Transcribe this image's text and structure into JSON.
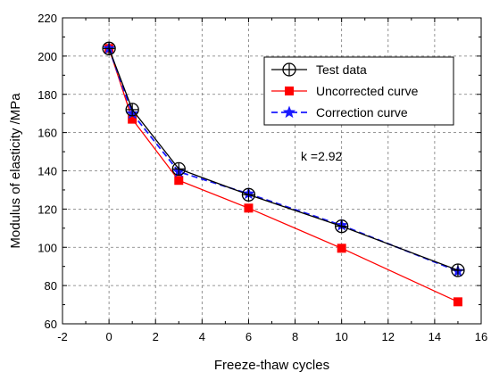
{
  "chart_data": {
    "type": "line",
    "xlabel": "Freeze-thaw cycles",
    "ylabel": "Modulus of elasticity /MPa",
    "xlim": [
      -2,
      16
    ],
    "ylim": [
      60,
      220
    ],
    "xticks": [
      -2,
      0,
      2,
      4,
      6,
      8,
      10,
      12,
      14,
      16
    ],
    "yticks": [
      60,
      80,
      100,
      120,
      140,
      160,
      180,
      200,
      220
    ],
    "grid": true,
    "legend_position": "top-right",
    "annotation": "k =2.92",
    "series": [
      {
        "name": "Test data",
        "color": "#000000",
        "marker": "circle-plus",
        "line": "solid",
        "x": [
          0,
          1,
          3,
          6,
          10,
          15
        ],
        "y": [
          204,
          172,
          141,
          127.5,
          111,
          88
        ]
      },
      {
        "name": "Uncorrected curve",
        "color": "#ff0000",
        "marker": "square",
        "line": "solid",
        "x": [
          0,
          1,
          3,
          6,
          10,
          15
        ],
        "y": [
          204,
          167,
          135,
          120.5,
          99.5,
          71.5
        ]
      },
      {
        "name": "Correction curve",
        "color": "#1a1aff",
        "marker": "star",
        "line": "dashed",
        "x": [
          0,
          1,
          3,
          6,
          10,
          15
        ],
        "y": [
          204,
          170,
          139.5,
          128,
          111.5,
          87.5
        ]
      }
    ]
  }
}
